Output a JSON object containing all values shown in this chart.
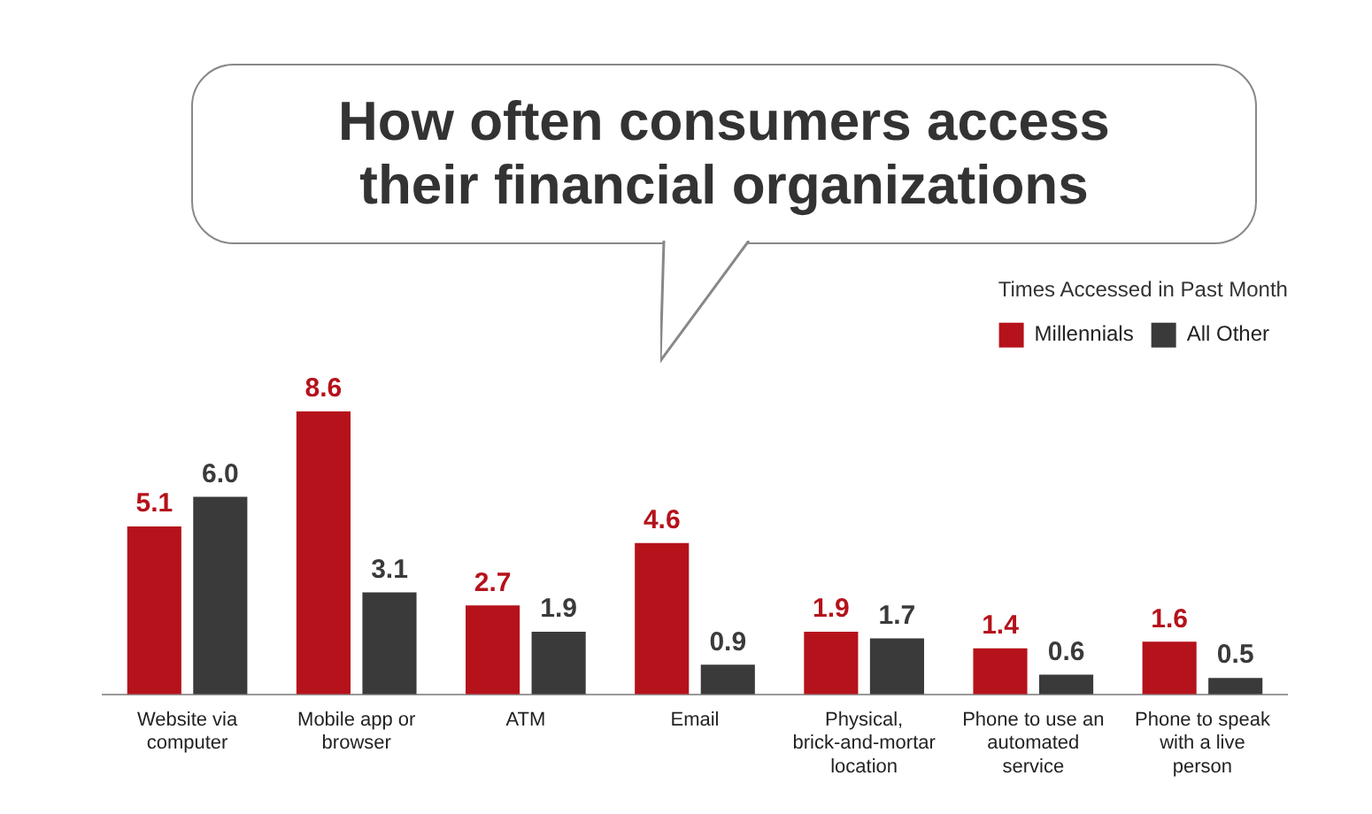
{
  "chart_data": {
    "type": "bar",
    "title": "How often consumers access their financial organizations",
    "categories": [
      "Website via computer",
      "Mobile app or browser",
      "ATM",
      "Email",
      "Physical, brick-and-mortar location",
      "Phone to use an automated service",
      "Phone to speak with a live person"
    ],
    "series": [
      {
        "name": "Millennials",
        "color": "#b5121b",
        "values": [
          5.1,
          8.6,
          2.7,
          4.6,
          1.9,
          1.4,
          1.6
        ],
        "value_labels": [
          "5.1",
          "8.6",
          "2.7",
          "4.6",
          "1.9",
          "1.4",
          "1.6"
        ]
      },
      {
        "name": "All Other",
        "color": "#3a3a3a",
        "values": [
          6.0,
          3.1,
          1.9,
          0.9,
          1.7,
          0.6,
          0.5
        ],
        "value_labels": [
          "6.0",
          "3.1",
          "1.9",
          "0.9",
          "1.7",
          "0.6",
          "0.5"
        ]
      }
    ],
    "legend": "top right",
    "legend_title": "Times Accessed in Past Month",
    "grid": false
  }
}
